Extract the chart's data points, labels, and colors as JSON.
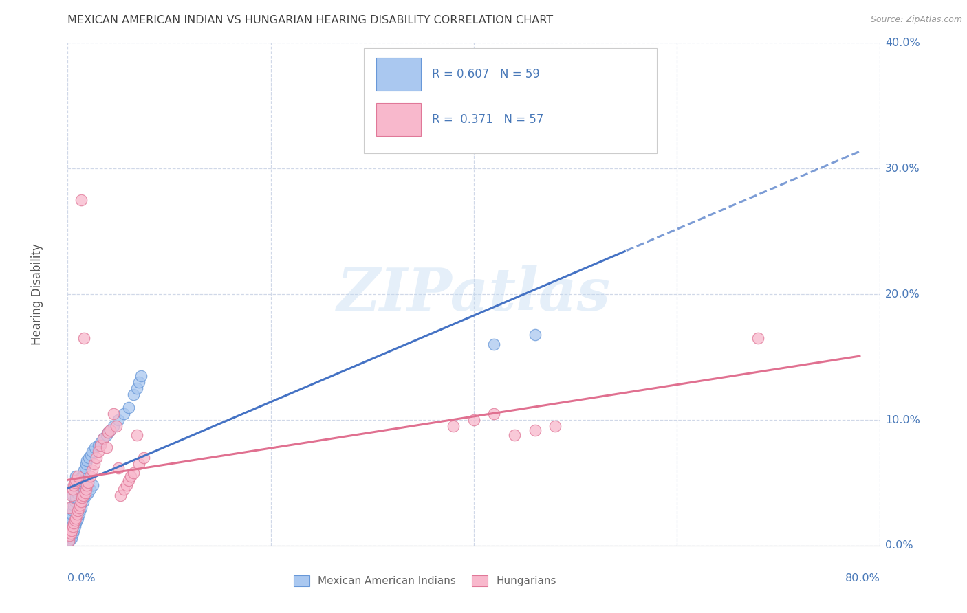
{
  "title": "MEXICAN AMERICAN INDIAN VS HUNGARIAN HEARING DISABILITY CORRELATION CHART",
  "source": "Source: ZipAtlas.com",
  "ylabel": "Hearing Disability",
  "watermark": "ZIPatlas",
  "legend_bottom": [
    "Mexican American Indians",
    "Hungarians"
  ],
  "blue_face": "#aac8f0",
  "blue_edge": "#6898d8",
  "pink_face": "#f8b8cc",
  "pink_edge": "#e07898",
  "line_blue": "#4472c4",
  "line_pink": "#e07090",
  "grid_color": "#d0d8e8",
  "title_color": "#404040",
  "axis_color": "#4878b8",
  "ytick_color": "#4878b8",
  "R_blue": 0.607,
  "N_blue": 59,
  "R_pink": 0.371,
  "N_pink": 57,
  "xlim": [
    0.0,
    0.8
  ],
  "ylim": [
    0.0,
    0.4
  ],
  "yticks": [
    0.0,
    0.1,
    0.2,
    0.3,
    0.4
  ],
  "xticks": [
    0.0,
    0.2,
    0.4,
    0.6,
    0.8
  ],
  "blue_x": [
    0.001,
    0.002,
    0.002,
    0.003,
    0.003,
    0.004,
    0.004,
    0.005,
    0.005,
    0.005,
    0.006,
    0.006,
    0.007,
    0.007,
    0.008,
    0.008,
    0.008,
    0.009,
    0.009,
    0.01,
    0.01,
    0.011,
    0.011,
    0.012,
    0.012,
    0.013,
    0.013,
    0.014,
    0.015,
    0.015,
    0.016,
    0.016,
    0.017,
    0.018,
    0.018,
    0.019,
    0.02,
    0.021,
    0.022,
    0.023,
    0.024,
    0.025,
    0.027,
    0.03,
    0.032,
    0.035,
    0.038,
    0.04,
    0.042,
    0.045,
    0.05,
    0.055,
    0.06,
    0.065,
    0.068,
    0.07,
    0.072,
    0.42,
    0.46
  ],
  "blue_y": [
    0.003,
    0.005,
    0.018,
    0.008,
    0.022,
    0.006,
    0.025,
    0.01,
    0.028,
    0.04,
    0.012,
    0.032,
    0.015,
    0.035,
    0.018,
    0.038,
    0.055,
    0.02,
    0.042,
    0.022,
    0.045,
    0.025,
    0.048,
    0.028,
    0.05,
    0.03,
    0.052,
    0.055,
    0.035,
    0.055,
    0.038,
    0.06,
    0.062,
    0.04,
    0.065,
    0.068,
    0.042,
    0.07,
    0.045,
    0.072,
    0.075,
    0.048,
    0.078,
    0.08,
    0.082,
    0.085,
    0.088,
    0.09,
    0.092,
    0.095,
    0.1,
    0.105,
    0.11,
    0.12,
    0.125,
    0.13,
    0.135,
    0.16,
    0.168
  ],
  "pink_x": [
    0.001,
    0.002,
    0.002,
    0.003,
    0.004,
    0.004,
    0.005,
    0.005,
    0.006,
    0.006,
    0.007,
    0.007,
    0.008,
    0.008,
    0.009,
    0.01,
    0.01,
    0.011,
    0.012,
    0.013,
    0.013,
    0.014,
    0.015,
    0.016,
    0.017,
    0.018,
    0.019,
    0.02,
    0.022,
    0.024,
    0.026,
    0.028,
    0.03,
    0.032,
    0.035,
    0.038,
    0.04,
    0.042,
    0.045,
    0.048,
    0.05,
    0.052,
    0.055,
    0.058,
    0.06,
    0.062,
    0.065,
    0.068,
    0.07,
    0.075,
    0.38,
    0.4,
    0.42,
    0.44,
    0.46,
    0.48,
    0.68
  ],
  "pink_y": [
    0.004,
    0.008,
    0.03,
    0.01,
    0.012,
    0.04,
    0.015,
    0.045,
    0.018,
    0.048,
    0.02,
    0.05,
    0.022,
    0.052,
    0.025,
    0.028,
    0.055,
    0.03,
    0.032,
    0.035,
    0.275,
    0.038,
    0.04,
    0.165,
    0.042,
    0.045,
    0.048,
    0.05,
    0.055,
    0.06,
    0.065,
    0.07,
    0.075,
    0.08,
    0.085,
    0.078,
    0.09,
    0.092,
    0.105,
    0.095,
    0.062,
    0.04,
    0.045,
    0.048,
    0.052,
    0.055,
    0.058,
    0.088,
    0.065,
    0.07,
    0.095,
    0.1,
    0.105,
    0.088,
    0.092,
    0.095,
    0.165
  ]
}
